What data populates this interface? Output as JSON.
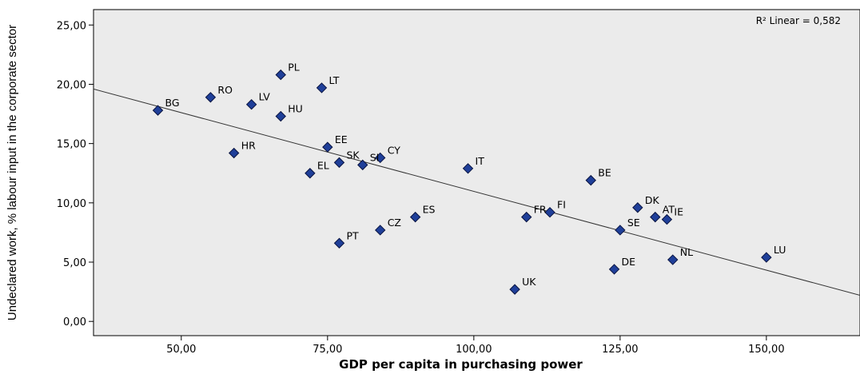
{
  "chart_data": {
    "type": "scatter",
    "xlabel": "GDP per capita in purchasing power",
    "ylabel": "Undeclared work, % labour input in the corporate sector",
    "xlim": [
      35,
      166
    ],
    "ylim": [
      -1.2,
      26.3
    ],
    "xticks": [
      50,
      75,
      100,
      125,
      150
    ],
    "xtick_labels": [
      "50,00",
      "75,00",
      "100,00",
      "125,00",
      "150,00"
    ],
    "yticks": [
      0,
      5,
      10,
      15,
      20,
      25
    ],
    "ytick_labels": [
      "0,00",
      "5,00",
      "10,00",
      "15,00",
      "20,00",
      "25,00"
    ],
    "grid": false,
    "background": "#ebebeb",
    "marker_color": "#1f3f99",
    "fit_line": {
      "type": "linear",
      "label": "R² Linear = 0,582",
      "x": [
        35,
        166
      ],
      "y": [
        19.6,
        2.2
      ]
    },
    "points": [
      {
        "label": "PL",
        "x": 67,
        "y": 20.8
      },
      {
        "label": "LT",
        "x": 74,
        "y": 19.7
      },
      {
        "label": "RO",
        "x": 55,
        "y": 18.9
      },
      {
        "label": "LV",
        "x": 62,
        "y": 18.3
      },
      {
        "label": "BG",
        "x": 46,
        "y": 17.8
      },
      {
        "label": "HU",
        "x": 67,
        "y": 17.3
      },
      {
        "label": "EE",
        "x": 75,
        "y": 14.7
      },
      {
        "label": "HR",
        "x": 59,
        "y": 14.2
      },
      {
        "label": "SK",
        "x": 77,
        "y": 13.4
      },
      {
        "label": "CY",
        "x": 84,
        "y": 13.8
      },
      {
        "label": "SI",
        "x": 81,
        "y": 13.2
      },
      {
        "label": "IT",
        "x": 99,
        "y": 12.9
      },
      {
        "label": "EL",
        "x": 72,
        "y": 12.5
      },
      {
        "label": "BE",
        "x": 120,
        "y": 11.9
      },
      {
        "label": "DK",
        "x": 128,
        "y": 9.6
      },
      {
        "label": "FI",
        "x": 113,
        "y": 9.2
      },
      {
        "label": "FR",
        "x": 109,
        "y": 8.8
      },
      {
        "label": "ES",
        "x": 90,
        "y": 8.8
      },
      {
        "label": "AT",
        "x": 131,
        "y": 8.8
      },
      {
        "label": "IE",
        "x": 133,
        "y": 8.6
      },
      {
        "label": "SE",
        "x": 125,
        "y": 7.7
      },
      {
        "label": "CZ",
        "x": 84,
        "y": 7.7
      },
      {
        "label": "PT",
        "x": 77,
        "y": 6.6
      },
      {
        "label": "LU",
        "x": 150,
        "y": 5.4
      },
      {
        "label": "NL",
        "x": 134,
        "y": 5.2
      },
      {
        "label": "DE",
        "x": 124,
        "y": 4.4
      },
      {
        "label": "UK",
        "x": 107,
        "y": 2.7
      }
    ]
  }
}
